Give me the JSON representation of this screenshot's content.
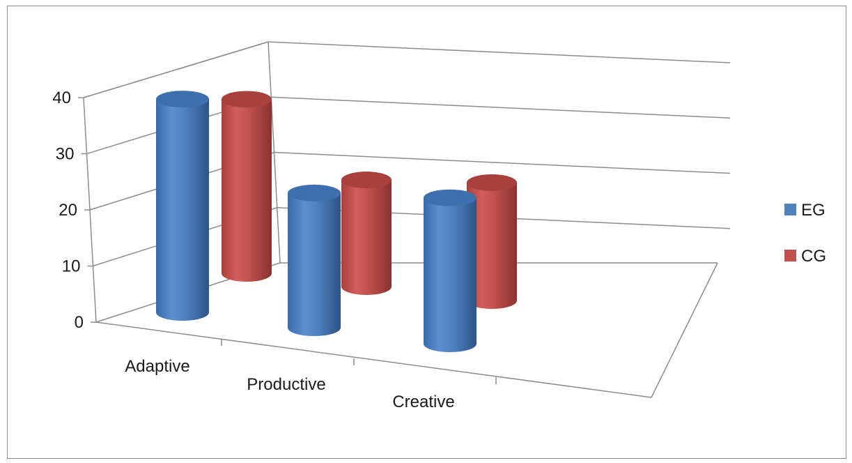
{
  "chart_data": {
    "type": "bar",
    "style": "3d-cylinder",
    "categories": [
      "Adaptive",
      "Productive",
      "Creative"
    ],
    "series": [
      {
        "name": "EG",
        "values": [
          38,
          24,
          26
        ],
        "color": "#4f81bd"
      },
      {
        "name": "CG",
        "values": [
          31,
          19,
          21
        ],
        "color": "#c0504d"
      }
    ],
    "y_ticks": [
      "0",
      "10",
      "20",
      "30",
      "40"
    ],
    "ylim": [
      0,
      40
    ],
    "grid": true,
    "legend_position": "right",
    "title": "",
    "xlabel": "",
    "ylabel": ""
  }
}
